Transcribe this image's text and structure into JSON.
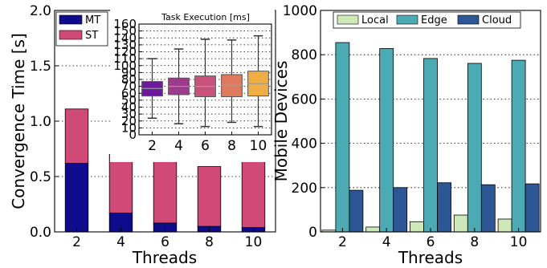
{
  "chart_data": [
    {
      "type": "bar",
      "stacked": true,
      "title": "",
      "xlabel": "Threads",
      "ylabel": "Convergence Time [s]",
      "categories": [
        "2",
        "4",
        "6",
        "8",
        "10"
      ],
      "series": [
        {
          "name": "MT",
          "color": "#0e0b8c",
          "values": [
            0.62,
            0.17,
            0.08,
            0.05,
            0.04
          ]
        },
        {
          "name": "ST",
          "color": "#d04a78",
          "values": [
            0.49,
            0.53,
            0.57,
            0.54,
            0.68
          ]
        }
      ],
      "ylim": [
        0,
        2.0
      ],
      "yticks": [
        "0.0",
        "0.5",
        "1.0",
        "1.5",
        "2.0"
      ],
      "grid": true,
      "legend": "top-left",
      "inset": {
        "type": "box",
        "title": "Task Execution [ms]",
        "categories": [
          "2",
          "4",
          "6",
          "8",
          "10"
        ],
        "ylim": [
          0,
          160
        ],
        "yticks": [
          "0",
          "10",
          "20",
          "30",
          "40",
          "50",
          "60",
          "70",
          "80",
          "90",
          "100",
          "110",
          "120",
          "130",
          "140",
          "150",
          "160"
        ],
        "colors": [
          "#6a1a9a",
          "#9c3a8c",
          "#c8527c",
          "#df7a5c",
          "#eeae45"
        ],
        "boxes": [
          {
            "whislo": 24,
            "q1": 56,
            "med": 67,
            "q3": 77,
            "whishi": 110
          },
          {
            "whislo": 16,
            "q1": 58,
            "med": 70,
            "q3": 82,
            "whishi": 124
          },
          {
            "whislo": 12,
            "q1": 55,
            "med": 70,
            "q3": 85,
            "whishi": 138
          },
          {
            "whislo": 18,
            "q1": 55,
            "med": 72,
            "q3": 87,
            "whishi": 137
          },
          {
            "whislo": 12,
            "q1": 56,
            "med": 74,
            "q3": 92,
            "whishi": 143
          }
        ]
      }
    },
    {
      "type": "bar",
      "title": "",
      "xlabel": "Threads",
      "ylabel": "Mobile Devices",
      "categories": [
        "2",
        "4",
        "6",
        "8",
        "10"
      ],
      "series": [
        {
          "name": "Local",
          "color": "#cfe8b8",
          "values": [
            8,
            22,
            46,
            76,
            58
          ]
        },
        {
          "name": "Edge",
          "color": "#4baab4",
          "values": [
            855,
            828,
            783,
            761,
            775
          ]
        },
        {
          "name": "Cloud",
          "color": "#2c5694",
          "values": [
            188,
            200,
            222,
            213,
            217
          ]
        }
      ],
      "ylim": [
        0,
        1000
      ],
      "yticks": [
        "0",
        "200",
        "400",
        "600",
        "800",
        "1000"
      ],
      "grid": true,
      "legend": "top-center"
    }
  ]
}
